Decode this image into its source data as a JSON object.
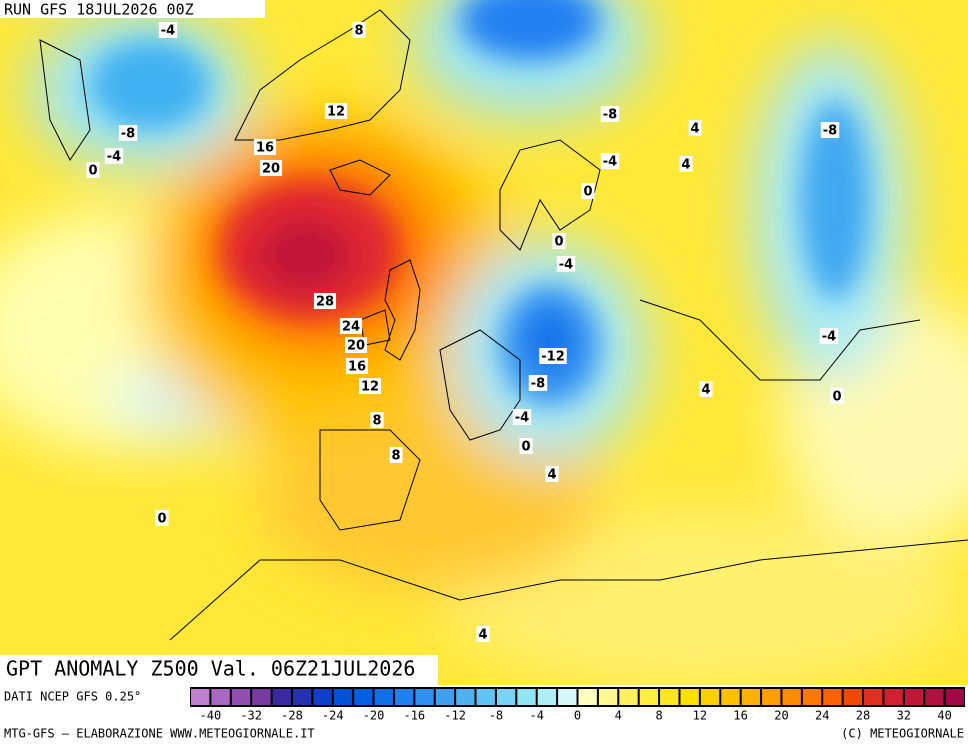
{
  "header": {
    "run": "RUN GFS 18JUL2026 00Z"
  },
  "map": {
    "contour_labels": [
      "-4",
      "8",
      "12",
      "-8",
      "-4",
      "0",
      "16",
      "20",
      "-8",
      "4",
      "-8",
      "-4",
      "4",
      "0",
      "0",
      "-4",
      "28",
      "24",
      "20",
      "16",
      "-12",
      "12",
      "-8",
      "4",
      "-4",
      "0",
      "8",
      "-4",
      "0",
      "8",
      "4",
      "0",
      "4"
    ]
  },
  "footer": {
    "title": "GPT ANOMALY Z500 Val. 06Z21JUL2026",
    "source": "DATI NCEP GFS 0.25°",
    "credit_left": "MTG-GFS — ELABORAZIONE WWW.METEOGIORNALE.IT",
    "credit_right": "(C) METEOGIORNALE"
  },
  "legend": {
    "labels": [
      "-40",
      "-32",
      "-28",
      "-24",
      "-20",
      "-16",
      "-12",
      "-8",
      "-4",
      "0",
      "4",
      "8",
      "12",
      "16",
      "20",
      "24",
      "28",
      "32",
      "40"
    ],
    "colors": [
      "#c080d0",
      "#a868c0",
      "#9050b0",
      "#783ca0",
      "#3a2aa0",
      "#2432b0",
      "#1040c8",
      "#0050d8",
      "#0060e0",
      "#1070e8",
      "#2080f0",
      "#3090f0",
      "#40a0f0",
      "#50b0f0",
      "#60c4f4",
      "#78d4f4",
      "#90e4f4",
      "#b0eef6",
      "#d4f8fa",
      "#ffffc0",
      "#fff890",
      "#fff060",
      "#fff040",
      "#ffe820",
      "#ffe000",
      "#ffd000",
      "#ffc000",
      "#ffb000",
      "#ffa000",
      "#ff8c00",
      "#ff7800",
      "#ff6000",
      "#f04800",
      "#e03020",
      "#d02030",
      "#c01838",
      "#b01040",
      "#a00848"
    ]
  }
}
